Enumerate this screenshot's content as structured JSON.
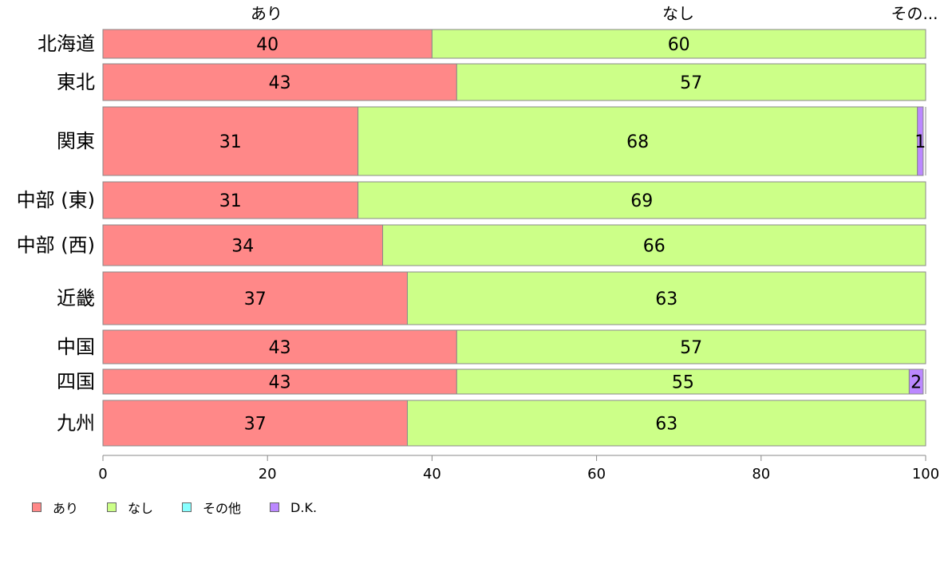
{
  "chart_data": {
    "type": "bar",
    "orientation": "horizontal",
    "stacked": true,
    "xlim": [
      0,
      100
    ],
    "xticks": [
      "0",
      "20",
      "40",
      "60",
      "80",
      "100"
    ],
    "top_labels": [
      "あり",
      "なし",
      "その..."
    ],
    "categories": [
      "北海道",
      "東北",
      "関東",
      "中部 (東)",
      "中部 (西)",
      "近畿",
      "中国",
      "四国",
      "九州"
    ],
    "series": [
      {
        "name": "あり",
        "color": "#FF8888",
        "values": [
          40,
          43,
          31,
          31,
          34,
          37,
          43,
          43,
          37
        ],
        "labels": [
          "40",
          "43",
          "31",
          "31",
          "34",
          "37",
          "43",
          "43",
          "37"
        ]
      },
      {
        "name": "なし",
        "color": "#CCFF88",
        "values": [
          60,
          57,
          68,
          69,
          66,
          63,
          57,
          55,
          63
        ],
        "labels": [
          "60",
          "57",
          "68",
          "69",
          "66",
          "63",
          "57",
          "55",
          "63"
        ]
      },
      {
        "name": "その他",
        "color": "#88FFFF",
        "values": [
          0,
          0,
          0,
          0,
          0,
          0,
          0,
          0,
          0
        ],
        "labels": [
          "",
          "",
          "",
          "",
          "",
          "",
          "",
          "",
          ""
        ]
      },
      {
        "name": "D.K.",
        "color": "#BB88FF",
        "values": [
          0,
          0,
          0.7,
          0,
          0,
          0,
          0,
          1.7,
          0
        ],
        "labels": [
          "",
          "",
          "1",
          "",
          "",
          "",
          "",
          "2",
          ""
        ]
      }
    ],
    "legend": {
      "position": "bottom-left"
    }
  }
}
